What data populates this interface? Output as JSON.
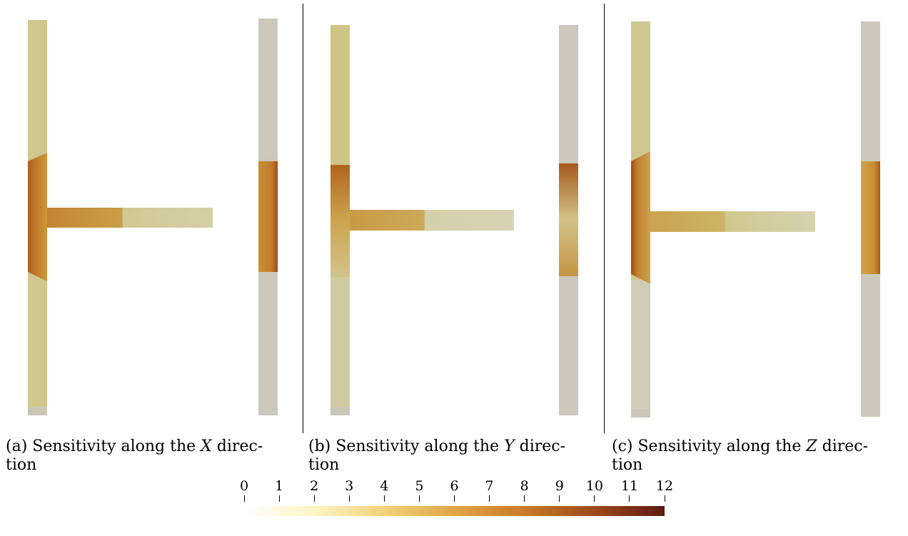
{
  "panels": [
    {
      "caption_prefix": "(a) Sensitivity along the",
      "axis": "X",
      "caption_suffix": " direc-",
      "caption_line2": "tion"
    },
    {
      "caption_prefix": "(b) Sensitivity along the",
      "axis": "Y",
      "caption_suffix": " direc-",
      "caption_line2": "tion"
    },
    {
      "caption_prefix": "(c) Sensitivity along the",
      "axis": "Z",
      "caption_suffix": " direc-",
      "caption_line2": "tion"
    }
  ],
  "colorbar": {
    "ticks": [
      "0",
      "1",
      "2",
      "3",
      "4",
      "5",
      "6",
      "7",
      "8",
      "9",
      "10",
      "11",
      "12"
    ],
    "min": 0,
    "max": 12,
    "colors": [
      "#ffffff",
      "#fdf5c4",
      "#f1d27c",
      "#e0a547",
      "#c97a2a",
      "#9d4a1b",
      "#5e1a12"
    ]
  },
  "colors": {
    "light": "#d0c890",
    "grey": "#cbc7b8",
    "mid": "#c89a45",
    "dark": "#a55a1c"
  }
}
